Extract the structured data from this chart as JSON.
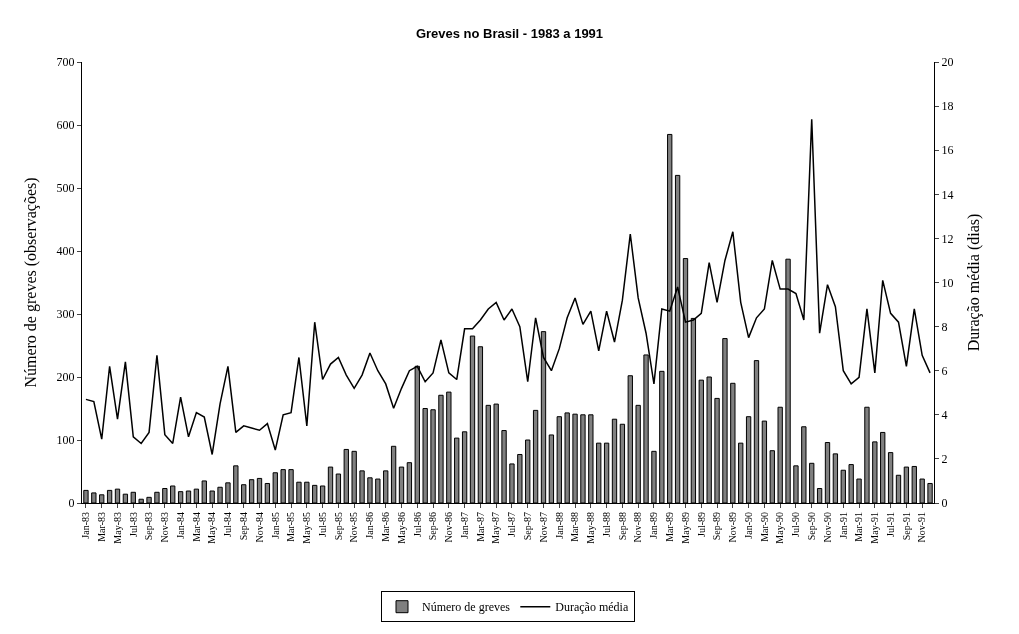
{
  "chart_data": {
    "type": "bar",
    "title": "Greves no Brasil - 1983 a 1991",
    "ylabel": "Número de greves (observações)",
    "y2label": "Duração média (dias)",
    "categories": [
      "Jan-83",
      null,
      "Mar-83",
      null,
      "May-83",
      null,
      "Jul-83",
      null,
      "Sep-83",
      null,
      "Nov-83",
      null,
      "Jan-84",
      null,
      "Mar-84",
      null,
      "May-84",
      null,
      "Jul-84",
      null,
      "Sep-84",
      null,
      "Nov-84",
      null,
      "Jan-85",
      null,
      "Mar-85",
      null,
      "May-85",
      null,
      "Jul-85",
      null,
      "Sep-85",
      null,
      "Nov-85",
      null,
      "Jan-86",
      null,
      "Mar-86",
      null,
      "May-86",
      null,
      "Jul-86",
      null,
      "Sep-86",
      null,
      "Nov-86",
      null,
      "Jan-87",
      null,
      "Mar-87",
      null,
      "May-87",
      null,
      "Jul-87",
      null,
      "Sep-87",
      null,
      "Nov-87",
      null,
      "Jan-88",
      null,
      "Mar-88",
      null,
      "May-88",
      null,
      "Jul-88",
      null,
      "Sep-88",
      null,
      "Nov-88",
      null,
      "Jan-89",
      null,
      "Mar-89",
      null,
      "May-89",
      null,
      "Jul-89",
      null,
      "Sep-89",
      null,
      "Nov-89",
      null,
      "Jan-90",
      null,
      "Mar-90",
      null,
      "May-90",
      null,
      "Jul-90",
      null,
      "Sep-90",
      null,
      "Nov-90",
      null,
      "Jan-91",
      null,
      "Mar-91",
      null,
      "May-91",
      null,
      "Jul-91",
      null,
      "Sep-91",
      null,
      "Nov-91",
      null
    ],
    "series": [
      {
        "name": "Número de greves",
        "color": "#808080",
        "values": [
          20,
          16,
          13,
          20,
          22,
          14,
          17,
          6,
          9,
          17,
          23,
          27,
          18,
          19,
          22,
          35,
          19,
          25,
          32,
          59,
          29,
          37,
          39,
          31,
          48,
          53,
          53,
          33,
          33,
          28,
          27,
          57,
          46,
          85,
          82,
          51,
          40,
          38,
          51,
          90,
          57,
          64,
          217,
          150,
          148,
          171,
          176,
          103,
          113,
          265,
          248,
          155,
          157,
          115,
          62,
          77,
          100,
          147,
          272,
          108,
          137,
          143,
          141,
          140,
          140,
          95,
          95,
          133,
          125,
          202,
          155,
          235,
          82,
          209,
          585,
          520,
          388,
          293,
          195,
          200,
          166,
          261,
          190,
          95,
          137,
          226,
          130,
          83,
          152,
          387,
          59,
          121,
          63,
          23,
          96,
          78,
          52,
          61,
          38,
          152,
          97,
          112,
          80,
          44,
          57,
          58,
          38,
          31
        ]
      },
      {
        "name": "Duração média",
        "type": "line",
        "axis": "y2",
        "color": "#000000",
        "values": [
          4.7,
          4.6,
          2.9,
          6.2,
          3.8,
          6.4,
          3.0,
          2.7,
          3.2,
          6.7,
          3.1,
          2.7,
          4.8,
          3.0,
          4.1,
          3.9,
          2.2,
          4.5,
          6.2,
          3.2,
          3.5,
          3.4,
          3.3,
          3.6,
          2.4,
          4.0,
          4.1,
          6.6,
          3.5,
          8.2,
          5.6,
          6.3,
          6.6,
          5.8,
          5.2,
          5.8,
          6.8,
          6.0,
          5.4,
          4.3,
          5.2,
          6.0,
          6.2,
          5.5,
          5.9,
          7.4,
          5.9,
          5.6,
          7.9,
          7.9,
          8.3,
          8.8,
          9.1,
          8.3,
          8.8,
          8.0,
          5.5,
          8.4,
          6.6,
          6.0,
          7.0,
          8.4,
          9.3,
          8.1,
          8.7,
          6.9,
          8.7,
          7.3,
          9.2,
          12.2,
          9.3,
          7.7,
          5.4,
          8.8,
          8.7,
          9.8,
          8.2,
          8.3,
          8.6,
          10.9,
          9.1,
          11.0,
          12.3,
          9.1,
          7.5,
          8.4,
          8.8,
          11.0,
          9.7,
          9.7,
          9.5,
          8.3,
          17.4,
          7.7,
          9.9,
          8.9,
          6.0,
          5.4,
          5.7,
          8.8,
          5.9,
          10.1,
          8.6,
          8.2,
          6.2,
          8.8,
          6.7,
          5.9
        ]
      }
    ],
    "ylim": [
      0,
      700
    ],
    "yticks": [
      0,
      100,
      200,
      300,
      400,
      500,
      600,
      700
    ],
    "y2lim": [
      0,
      20
    ],
    "y2ticks": [
      0,
      2,
      4,
      6,
      8,
      10,
      12,
      14,
      16,
      18,
      20
    ],
    "grid": false,
    "legend": "bottom",
    "marker": "none",
    "line_style": "solid"
  }
}
